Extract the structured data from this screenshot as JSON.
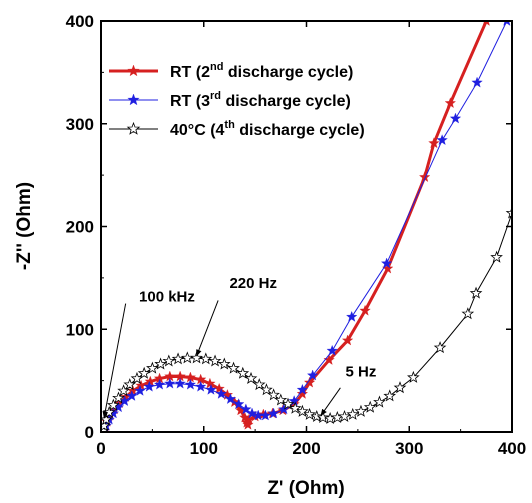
{
  "chart_data": {
    "type": "scatter",
    "xlabel": "Z' (Ohm)",
    "ylabel": "-Z'' (Ohm)",
    "xlim": [
      0,
      400
    ],
    "ylim": [
      0,
      400
    ],
    "x_ticks": [
      0,
      100,
      200,
      300,
      400
    ],
    "y_ticks": [
      0,
      100,
      200,
      300,
      400
    ],
    "x_tick_labels": [
      "0",
      "100",
      "200",
      "300",
      "400"
    ],
    "y_tick_labels": [
      "0",
      "100",
      "200",
      "300",
      "400"
    ],
    "grid": false,
    "legend_position": "top-left",
    "series": [
      {
        "name": "RT (2nd discharge cycle)",
        "legend": {
          "pre": "RT (2",
          "sup": "nd",
          "post": " discharge cycle)"
        },
        "color": "#d62020",
        "marker": "filled-star",
        "line": "thick",
        "points": [
          [
            3,
            1
          ],
          [
            4,
            5
          ],
          [
            6,
            10
          ],
          [
            9,
            16
          ],
          [
            13,
            22
          ],
          [
            18,
            28
          ],
          [
            24,
            34
          ],
          [
            31,
            40
          ],
          [
            39,
            45
          ],
          [
            48,
            49
          ],
          [
            57,
            52
          ],
          [
            67,
            54
          ],
          [
            77,
            54
          ],
          [
            87,
            53
          ],
          [
            97,
            51
          ],
          [
            106,
            47
          ],
          [
            115,
            42
          ],
          [
            123,
            36
          ],
          [
            130,
            29
          ],
          [
            136,
            21
          ],
          [
            140,
            14
          ],
          [
            142,
            9
          ],
          [
            143,
            7
          ],
          [
            144,
            12
          ],
          [
            150,
            15
          ],
          [
            158,
            17
          ],
          [
            167,
            18
          ],
          [
            177,
            21
          ],
          [
            188,
            27
          ],
          [
            196,
            37
          ],
          [
            203,
            48
          ],
          [
            222,
            70
          ],
          [
            240,
            89
          ],
          [
            257,
            118
          ],
          [
            279,
            159
          ],
          [
            315,
            248
          ],
          [
            324,
            281
          ],
          [
            340,
            320
          ],
          [
            375,
            400
          ]
        ]
      },
      {
        "name": "RT (3rd discharge cycle)",
        "legend": {
          "pre": "RT (3",
          "sup": "rd",
          "post": " discharge cycle)"
        },
        "color": "#1f1fe0",
        "marker": "filled-star",
        "line": "thin",
        "points": [
          [
            3,
            1
          ],
          [
            5,
            6
          ],
          [
            8,
            12
          ],
          [
            12,
            18
          ],
          [
            17,
            24
          ],
          [
            23,
            30
          ],
          [
            30,
            35
          ],
          [
            38,
            40
          ],
          [
            47,
            44
          ],
          [
            57,
            46
          ],
          [
            67,
            47
          ],
          [
            77,
            47
          ],
          [
            87,
            46
          ],
          [
            97,
            44
          ],
          [
            107,
            41
          ],
          [
            117,
            37
          ],
          [
            126,
            32
          ],
          [
            134,
            27
          ],
          [
            141,
            22
          ],
          [
            147,
            18
          ],
          [
            153,
            16
          ],
          [
            160,
            16
          ],
          [
            168,
            18
          ],
          [
            178,
            22
          ],
          [
            188,
            30
          ],
          [
            196,
            41
          ],
          [
            206,
            55
          ],
          [
            225,
            79
          ],
          [
            244,
            112
          ],
          [
            278,
            164
          ],
          [
            332,
            284
          ],
          [
            345,
            305
          ],
          [
            366,
            340
          ],
          [
            395,
            400
          ]
        ]
      },
      {
        "name": "40°C (4th discharge cycle)",
        "legend": {
          "pre": "40°C (4",
          "sup": "th",
          "post": " discharge cycle)"
        },
        "color": "#000000",
        "marker": "open-star",
        "line": "thin",
        "points": [
          [
            2,
            1
          ],
          [
            3,
            6
          ],
          [
            5,
            12
          ],
          [
            8,
            19
          ],
          [
            12,
            26
          ],
          [
            17,
            33
          ],
          [
            22,
            40
          ],
          [
            28,
            46
          ],
          [
            35,
            52
          ],
          [
            42,
            57
          ],
          [
            50,
            62
          ],
          [
            58,
            66
          ],
          [
            66,
            69
          ],
          [
            75,
            71
          ],
          [
            84,
            72
          ],
          [
            93,
            72
          ],
          [
            102,
            71
          ],
          [
            111,
            69
          ],
          [
            120,
            66
          ],
          [
            129,
            62
          ],
          [
            138,
            57
          ],
          [
            146,
            52
          ],
          [
            154,
            46
          ],
          [
            161,
            41
          ],
          [
            168,
            36
          ],
          [
            175,
            31
          ],
          [
            182,
            27
          ],
          [
            189,
            23
          ],
          [
            196,
            20
          ],
          [
            203,
            17
          ],
          [
            210,
            15
          ],
          [
            216,
            14
          ],
          [
            223,
            13
          ],
          [
            230,
            14
          ],
          [
            237,
            15
          ],
          [
            245,
            17
          ],
          [
            253,
            20
          ],
          [
            262,
            24
          ],
          [
            271,
            29
          ],
          [
            281,
            35
          ],
          [
            291,
            43
          ],
          [
            304,
            53
          ],
          [
            330,
            82
          ],
          [
            357,
            115
          ],
          [
            365,
            135
          ],
          [
            385,
            170
          ],
          [
            400,
            213
          ]
        ]
      }
    ],
    "annotations": [
      {
        "label": "100 kHz",
        "text_at": [
          37,
          127
        ],
        "arrow_from": [
          24,
          125
        ],
        "arrow_to": [
          3,
          14
        ]
      },
      {
        "label": "220 Hz",
        "text_at": [
          125,
          140
        ],
        "arrow_from": [
          114,
          128
        ],
        "arrow_to": [
          93,
          74
        ]
      },
      {
        "label": "5 Hz",
        "text_at": [
          238,
          54
        ],
        "arrow_from": [
          233,
          43
        ],
        "arrow_to": [
          214,
          16
        ]
      }
    ]
  }
}
